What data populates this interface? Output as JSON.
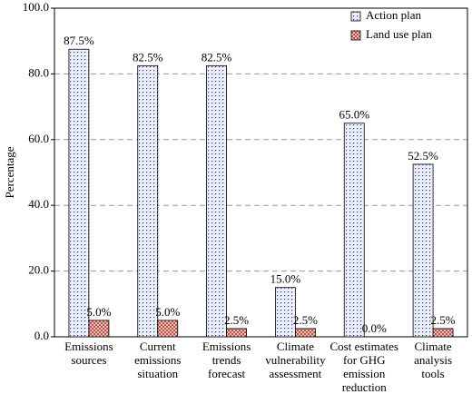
{
  "chart_data": {
    "type": "bar",
    "ylabel": "Percentage",
    "categories": [
      [
        "Emissions",
        "sources"
      ],
      [
        "Current",
        "emissions",
        "situation"
      ],
      [
        "Emissions",
        "trends",
        "forecast"
      ],
      [
        "Climate",
        "vulnerability",
        "assessment"
      ],
      [
        "Cost estimates",
        "for GHG",
        "emission",
        "reduction"
      ],
      [
        "Climate",
        "analysis",
        "tools"
      ]
    ],
    "series": [
      {
        "name": "Action plan",
        "color": "#2b3fae",
        "values": [
          87.5,
          82.5,
          82.5,
          15.0,
          65.0,
          52.5
        ],
        "value_labels": [
          "87.5%",
          "82.5%",
          "82.5%",
          "15.0%",
          "65.0%",
          "52.5%"
        ]
      },
      {
        "name": "Land use plan",
        "color": "#b03a2e",
        "values": [
          5.0,
          5.0,
          2.5,
          2.5,
          0.0,
          2.5
        ],
        "value_labels": [
          "5.0%",
          "5.0%",
          "2.5%",
          "2.5%",
          "0.0%",
          "2.5%"
        ]
      }
    ],
    "ylim": [
      0,
      100
    ],
    "yticks": [
      {
        "value": 0,
        "label": "0.0"
      },
      {
        "value": 20,
        "label": "20.0"
      },
      {
        "value": 40,
        "label": "40.0"
      },
      {
        "value": 60,
        "label": "60.0"
      },
      {
        "value": 80,
        "label": "80.0"
      },
      {
        "value": 100,
        "label": "100.0"
      }
    ],
    "grid": true,
    "legend": "top-right"
  }
}
